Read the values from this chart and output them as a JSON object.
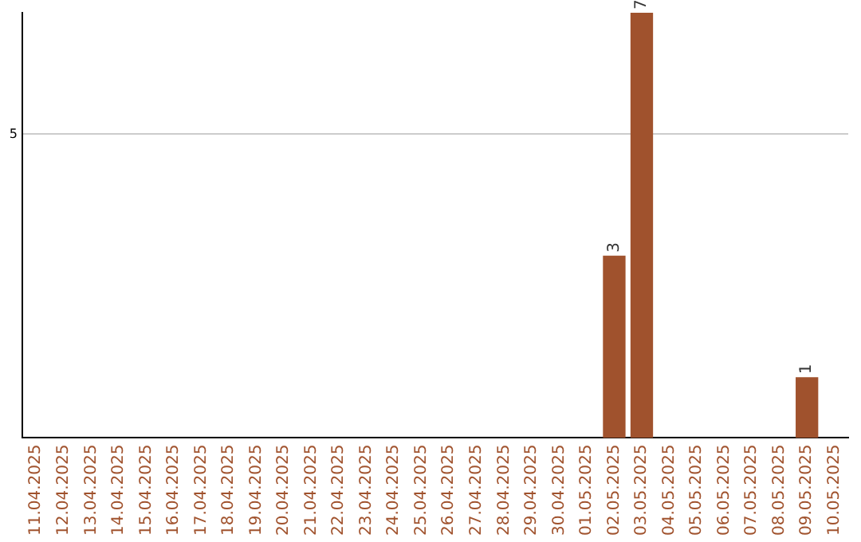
{
  "chart_data": {
    "type": "bar",
    "categories": [
      "11.04.2025",
      "12.04.2025",
      "13.04.2025",
      "14.04.2025",
      "15.04.2025",
      "16.04.2025",
      "17.04.2025",
      "18.04.2025",
      "19.04.2025",
      "20.04.2025",
      "21.04.2025",
      "22.04.2025",
      "23.04.2025",
      "24.04.2025",
      "25.04.2025",
      "26.04.2025",
      "27.04.2025",
      "28.04.2025",
      "29.04.2025",
      "30.04.2025",
      "01.05.2025",
      "02.05.2025",
      "03.05.2025",
      "04.05.2025",
      "05.05.2025",
      "06.05.2025",
      "07.05.2025",
      "08.05.2025",
      "09.05.2025",
      "10.05.2025"
    ],
    "values": [
      null,
      null,
      null,
      null,
      null,
      null,
      null,
      null,
      null,
      null,
      null,
      null,
      null,
      null,
      null,
      null,
      null,
      null,
      null,
      null,
      null,
      3,
      7,
      null,
      null,
      null,
      null,
      null,
      1,
      null
    ],
    "value_labels": [
      null,
      null,
      null,
      null,
      null,
      null,
      null,
      null,
      null,
      null,
      null,
      null,
      null,
      null,
      null,
      null,
      null,
      null,
      null,
      null,
      null,
      "3",
      "7",
      null,
      null,
      null,
      null,
      null,
      "1",
      null
    ],
    "color": "#a0522d",
    "ylim": [
      0,
      7
    ],
    "yticks": [
      5
    ],
    "grid": "y"
  }
}
